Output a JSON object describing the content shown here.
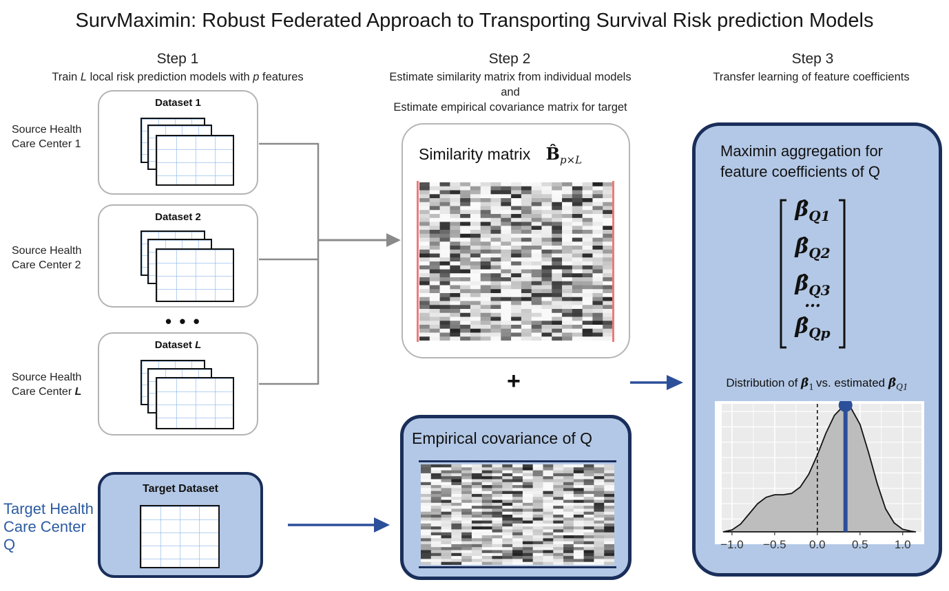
{
  "title": "SurvMaximin: Robust Federated Approach to Transporting Survival Risk prediction Models",
  "step1": {
    "heading": "Step 1",
    "subtitle_pre": "Train ",
    "subtitle_l": "L",
    "subtitle_mid": " local risk prediction models with ",
    "subtitle_p": "p",
    "subtitle_post": " features",
    "sources": [
      {
        "label_line1": "Source Health",
        "label_line2": "Care Center 1",
        "dataset": "Dataset 1"
      },
      {
        "label_line1": "Source Health",
        "label_line2": "Care Center 2",
        "dataset": "Dataset 2"
      },
      {
        "label_line1": "Source Health",
        "label_line2": "Care Center ",
        "label_suffix": "L",
        "dataset": "Dataset ",
        "dataset_suffix": "L"
      }
    ],
    "ellipsis": "• • •",
    "target": {
      "dataset": "Target Dataset",
      "label_line1": "Target Health",
      "label_line2": "Care Center",
      "label_line3": "Q"
    }
  },
  "step2": {
    "heading": "Step 2",
    "subtitle_line1": "Estimate similarity matrix from individual models",
    "subtitle_line2": "and",
    "subtitle_line3": "Estimate empirical covariance matrix for target",
    "similarity_label": "Similarity matrix",
    "similarity_symbol": "B̂",
    "similarity_subscript": "p×L",
    "plus": "+",
    "covariance_label": "Empirical covariance of Q"
  },
  "step3": {
    "heading": "Step 3",
    "subtitle": "Transfer learning of feature coefficients",
    "box_line1": "Maximin aggregation for",
    "box_line2": "feature coefficients of Q",
    "vector": [
      {
        "sym": "β̂",
        "sub": "Q1"
      },
      {
        "sym": "β̂",
        "sub": "Q2"
      },
      {
        "sym": "β̂",
        "sub": "Q3"
      },
      {
        "sym": "…",
        "sub": ""
      },
      {
        "sym": "β̂",
        "sub": "Qp"
      }
    ],
    "dist_pre": "Distribution of ",
    "dist_sym1": "β̂",
    "dist_sub1": "1",
    "dist_mid": "vs. estimated ",
    "dist_sym2": "β̂",
    "dist_sub2": "Q1"
  },
  "chart_data": {
    "type": "area",
    "x_ticks": [
      "−1.0",
      "−0.5",
      "0.0",
      "0.5",
      "1.0"
    ],
    "x_tick_values": [
      -1.0,
      -0.5,
      0.0,
      0.5,
      1.0
    ],
    "xlim": [
      -1.12,
      1.22
    ],
    "ylim": [
      0,
      1.0
    ],
    "density_x": [
      -1.1,
      -1.0,
      -0.9,
      -0.8,
      -0.7,
      -0.6,
      -0.5,
      -0.4,
      -0.3,
      -0.2,
      -0.1,
      0.0,
      0.1,
      0.2,
      0.3,
      0.4,
      0.5,
      0.6,
      0.7,
      0.8,
      0.9,
      1.0,
      1.1,
      1.15
    ],
    "density_y": [
      0.0,
      0.015,
      0.06,
      0.14,
      0.22,
      0.27,
      0.29,
      0.29,
      0.3,
      0.35,
      0.45,
      0.6,
      0.77,
      0.91,
      0.98,
      0.96,
      0.84,
      0.62,
      0.38,
      0.18,
      0.07,
      0.02,
      0.005,
      0.0
    ],
    "vline_dashed": 0.0,
    "estimate": 0.33,
    "estimate_height": 0.99,
    "grid": true,
    "fill_color": "#bdbdbd",
    "estimate_color": "#2c4f9a"
  }
}
